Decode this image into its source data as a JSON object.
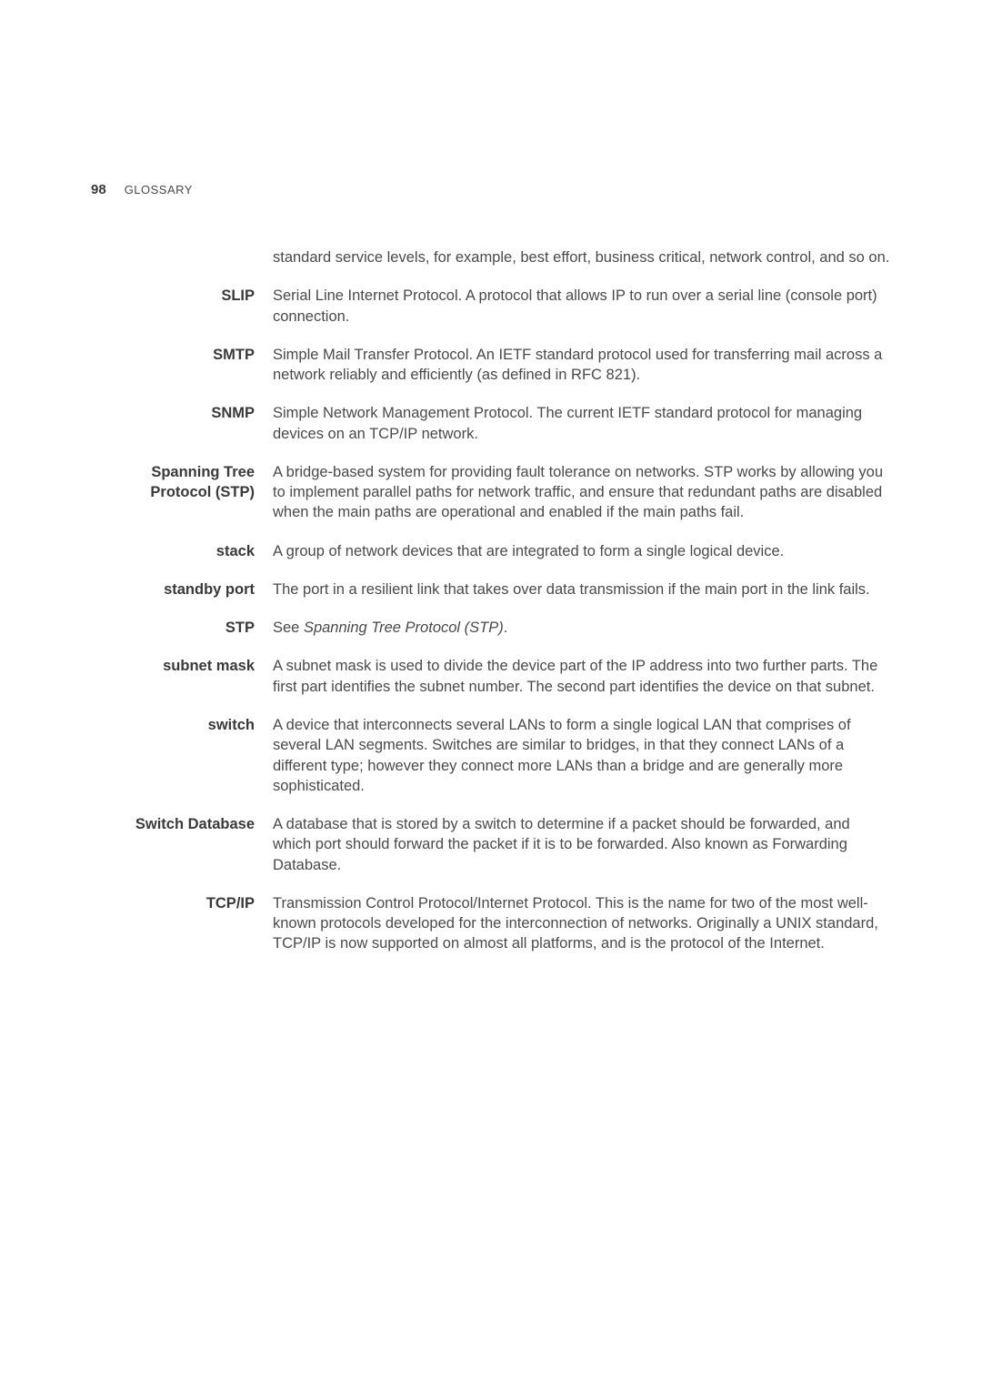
{
  "header": {
    "page_number": "98",
    "section_name": "GLOSSARY"
  },
  "intro": "standard service levels, for example, best effort, business critical, network control, and so on.",
  "entries": [
    {
      "term": "SLIP",
      "definition": "Serial Line Internet Protocol. A protocol that allows IP to run over a serial line (console port) connection."
    },
    {
      "term": "SMTP",
      "definition": "Simple Mail Transfer Protocol. An IETF standard protocol used for transferring mail across a network reliably and efficiently (as defined in RFC 821)."
    },
    {
      "term": "SNMP",
      "definition": "Simple Network Management Protocol. The current IETF standard protocol for managing devices on an TCP/IP network."
    },
    {
      "term": "Spanning Tree Protocol (STP)",
      "definition": "A bridge-based system for providing fault tolerance on networks. STP works by allowing you to implement parallel paths for network traffic, and ensure that redundant paths are disabled when the main paths are operational and enabled if the main paths fail."
    },
    {
      "term": "stack",
      "definition": "A group of network devices that are integrated to form a single logical device."
    },
    {
      "term": "standby port",
      "definition": "The port in a resilient link that takes over data transmission if the main port in the link fails."
    },
    {
      "term": "STP",
      "definition_prefix": "See ",
      "definition_italic": "Spanning Tree Protocol (STP)",
      "definition_suffix": "."
    },
    {
      "term": "subnet mask",
      "definition": "A subnet mask is used to divide the device part of the IP address into two further parts. The first part identifies the subnet number. The second part identifies the device on that subnet."
    },
    {
      "term": "switch",
      "definition": "A device that interconnects several LANs to form a single logical LAN that comprises of several LAN segments. Switches are similar to bridges, in that they connect LANs of a different type; however they connect more LANs than a bridge and are generally more sophisticated."
    },
    {
      "term": "Switch Database",
      "definition": "A database that is stored by a switch to determine if a packet should be forwarded, and which port should forward the packet if it is to be forwarded. Also known as Forwarding Database."
    },
    {
      "term": "TCP/IP",
      "definition": "Transmission Control Protocol/Internet Protocol. This is the name for two of the most well-known protocols developed for the interconnection of networks. Originally a UNIX standard, TCP/IP is now supported on almost all platforms, and is the protocol of the Internet."
    }
  ]
}
